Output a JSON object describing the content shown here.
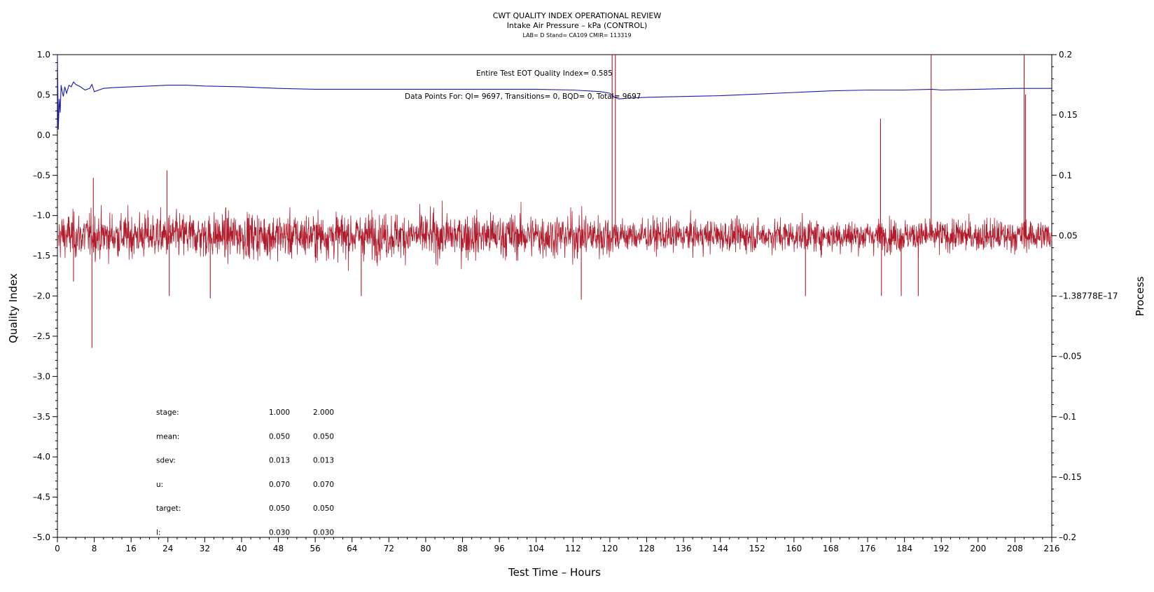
{
  "chart_data": {
    "type": "line",
    "title": "CWT QUALITY INDEX OPERATIONAL REVIEW",
    "subtitle": "Intake Air Pressure – kPa (CONTROL)",
    "subtitle2": "LAB= D Stand= CA109 CMIR= 113319",
    "xlabel": "Test Time – Hours",
    "ylabel_left": "Quality Index",
    "ylabel_right": "Process",
    "xlim": [
      0,
      216
    ],
    "ylim_left": [
      -5.0,
      1.0
    ],
    "ylim_right": [
      -0.2,
      0.2
    ],
    "x_ticks": [
      0,
      8,
      16,
      24,
      32,
      40,
      48,
      56,
      64,
      72,
      80,
      88,
      96,
      104,
      112,
      120,
      128,
      136,
      144,
      152,
      160,
      168,
      176,
      184,
      192,
      200,
      208,
      216
    ],
    "y_left_ticks": [
      1.0,
      0.5,
      0.0,
      -0.5,
      -1.0,
      -1.5,
      -2.0,
      -2.5,
      -3.0,
      -3.5,
      -4.0,
      -4.5,
      -5.0
    ],
    "y_left_tick_labels": [
      "1.0",
      "0.5",
      "0.0",
      "–0.5",
      "–1.0",
      "–1.5",
      "–2.0",
      "–2.5",
      "–3.0",
      "–3.5",
      "–4.0",
      "–4.5",
      "–5.0"
    ],
    "y_right_ticks": [
      0.2,
      0.15,
      0.1,
      0.05,
      0.0,
      -0.05,
      -0.1,
      -0.15,
      -0.2
    ],
    "y_right_tick_labels": [
      "0.2",
      "0.15",
      "0.1",
      "0.05",
      "–1.38778E–17",
      "–0.05",
      "–0.1",
      "–0.15",
      "–0.2"
    ],
    "annotation_qi": "Entire Test EOT Quality Index=   0.585",
    "annotation_points": "Data Points For: QI=  9697, Transitions=     0, BQD=     0, Total=  9697",
    "series": [
      {
        "name": "Quality Index",
        "axis": "left",
        "color": "#1a1aa8",
        "x": [
          0,
          0.2,
          0.4,
          0.6,
          0.8,
          1.0,
          1.3,
          1.6,
          2.0,
          2.5,
          3.0,
          3.5,
          4.0,
          5.0,
          6.0,
          7.0,
          7.5,
          8.0,
          9,
          10,
          12,
          16,
          20,
          24,
          28,
          32,
          40,
          48,
          56,
          64,
          72,
          80,
          88,
          96,
          104,
          112,
          118,
          120,
          121,
          122,
          124,
          128,
          136,
          144,
          152,
          160,
          168,
          176,
          184,
          190,
          192,
          200,
          208,
          212,
          216
        ],
        "values": [
          1.0,
          0.07,
          0.45,
          0.28,
          0.62,
          0.55,
          0.48,
          0.6,
          0.52,
          0.62,
          0.6,
          0.66,
          0.63,
          0.6,
          0.56,
          0.58,
          0.63,
          0.54,
          0.56,
          0.58,
          0.59,
          0.6,
          0.61,
          0.62,
          0.62,
          0.61,
          0.6,
          0.58,
          0.57,
          0.57,
          0.57,
          0.57,
          0.57,
          0.57,
          0.57,
          0.56,
          0.54,
          0.52,
          0.47,
          0.45,
          0.46,
          0.47,
          0.48,
          0.49,
          0.51,
          0.53,
          0.55,
          0.56,
          0.56,
          0.57,
          0.56,
          0.57,
          0.58,
          0.58,
          0.58
        ]
      },
      {
        "name": "Process",
        "axis": "right",
        "color": "#b01a2a",
        "mean": 0.05,
        "sdev": 0.013,
        "n_points": 9697,
        "spikes": [
          {
            "x": 1.0,
            "value": 0.062
          },
          {
            "x": 3.5,
            "value": 0.012
          },
          {
            "x": 7.5,
            "value": -0.043
          },
          {
            "x": 7.8,
            "value": 0.098
          },
          {
            "x": 23.8,
            "value": 0.104
          },
          {
            "x": 24.3,
            "value": 0.0
          },
          {
            "x": 33.2,
            "value": -0.002
          },
          {
            "x": 66.0,
            "value": 0.0
          },
          {
            "x": 113.8,
            "value": -0.003
          },
          {
            "x": 120.5,
            "value": 0.2
          },
          {
            "x": 121.2,
            "value": 0.2
          },
          {
            "x": 162.5,
            "value": 0.0
          },
          {
            "x": 178.8,
            "value": 0.147
          },
          {
            "x": 179.0,
            "value": 0.0
          },
          {
            "x": 183.3,
            "value": 0.0
          },
          {
            "x": 187.0,
            "value": 0.0
          },
          {
            "x": 189.8,
            "value": 0.2
          },
          {
            "x": 210.0,
            "value": 0.2
          },
          {
            "x": 210.3,
            "value": 0.167
          }
        ]
      }
    ],
    "stats_table": {
      "row_labels": [
        "stage:",
        "mean:",
        "sdev:",
        "u:",
        "target:",
        "l:"
      ],
      "rows": [
        [
          "1.000",
          "2.000"
        ],
        [
          "0.050",
          "0.050"
        ],
        [
          "0.013",
          "0.013"
        ],
        [
          "0.070",
          "0.070"
        ],
        [
          "0.050",
          "0.050"
        ],
        [
          "0.030",
          "0.030"
        ]
      ]
    }
  }
}
